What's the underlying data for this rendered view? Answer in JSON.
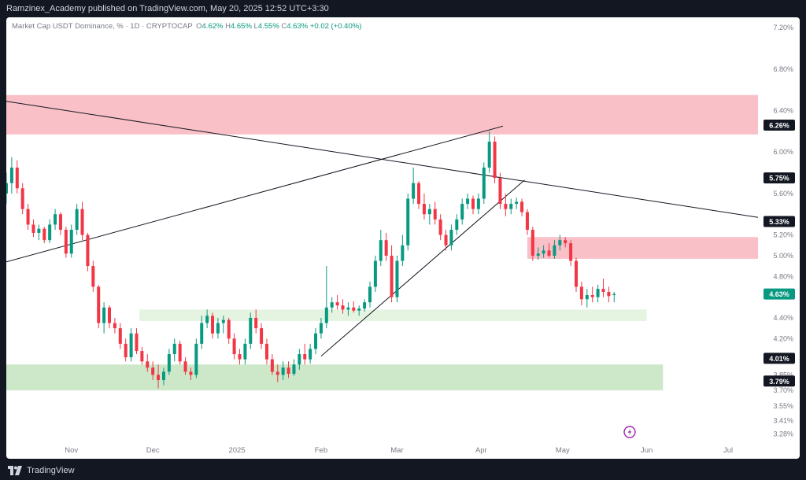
{
  "header": {
    "publisher_line": "Ramzinex_Academy published on TradingView.com, May 20, 2025 12:52 UTC+3:30"
  },
  "legend": {
    "symbol": "Market Cap USDT Dominance, % · 1D · CRYPTOCAP",
    "open_label": "O",
    "open": "4.62%",
    "high_label": "H",
    "high": "4.65%",
    "low_label": "L",
    "low": "4.55%",
    "close_label": "C",
    "close": "4.63%",
    "change": "+0.02 (+0.40%)"
  },
  "footer": {
    "brand": "TradingView"
  },
  "colors": {
    "up": "#089981",
    "down": "#f23645",
    "resistance_zone": "#f9b5bd",
    "support_zone": "#c7e6c3",
    "support_zone_light": "#e2f2de",
    "trendline": "#131722"
  },
  "chart_data": {
    "type": "candlestick",
    "y_scale": "linear",
    "ylim": [
      3.2,
      7.3
    ],
    "y_tick_labels": [
      "7.20%",
      "6.80%",
      "6.40%",
      "6.00%",
      "5.60%",
      "5.20%",
      "5.00%",
      "4.80%",
      "4.40%",
      "4.20%",
      "3.85%",
      "3.70%",
      "3.55%",
      "3.41%",
      "3.28%"
    ],
    "y_tick_values": [
      7.2,
      6.8,
      6.4,
      6.0,
      5.6,
      5.2,
      5.0,
      4.8,
      4.4,
      4.2,
      3.85,
      3.7,
      3.55,
      3.41,
      3.28
    ],
    "x_tick_labels": [
      "Nov",
      "Dec",
      "2025",
      "Feb",
      "Mar",
      "Apr",
      "May",
      "Jun",
      "Jul"
    ],
    "x_tick_dates": [
      "2024-11-01",
      "2024-12-01",
      "2025-01-01",
      "2025-02-01",
      "2025-03-01",
      "2025-04-01",
      "2025-05-01",
      "2025-06-01",
      "2025-07-01"
    ],
    "x_range": [
      "2024-10-08",
      "2025-07-12"
    ],
    "price_tags": [
      {
        "label": "6.26%",
        "value": 6.26,
        "style": "dark"
      },
      {
        "label": "5.75%",
        "value": 5.75,
        "style": "dark"
      },
      {
        "label": "5.33%",
        "value": 5.33,
        "style": "dark"
      },
      {
        "label": "4.63%",
        "value": 4.63,
        "style": "current"
      },
      {
        "label": "4.01%",
        "value": 4.01,
        "style": "dark"
      },
      {
        "label": "3.79%",
        "value": 3.79,
        "style": "dark"
      }
    ],
    "zones": [
      {
        "kind": "resistance",
        "from": "2024-10-08",
        "to": "2025-07-12",
        "low": 6.17,
        "high": 6.55
      },
      {
        "kind": "resistance",
        "from": "2025-04-18",
        "to": "2025-07-12",
        "low": 4.97,
        "high": 5.18
      },
      {
        "kind": "support_light",
        "from": "2024-11-26",
        "to": "2025-06-01",
        "low": 4.37,
        "high": 4.48
      },
      {
        "kind": "support",
        "from": "2024-10-08",
        "to": "2025-06-07",
        "low": 3.7,
        "high": 3.95
      }
    ],
    "trendlines": [
      {
        "from": [
          "2024-10-08",
          6.49
        ],
        "to": [
          "2025-07-12",
          5.37
        ]
      },
      {
        "from": [
          "2024-10-08",
          4.94
        ],
        "to": [
          "2025-04-09",
          6.25
        ]
      },
      {
        "from": [
          "2025-02-01",
          4.03
        ],
        "to": [
          "2025-04-17",
          5.73
        ]
      }
    ],
    "candles": [
      [
        "2024-10-08",
        5.6,
        5.8,
        5.5,
        5.7
      ],
      [
        "2024-10-10",
        5.7,
        5.95,
        5.6,
        5.85
      ],
      [
        "2024-10-12",
        5.85,
        5.92,
        5.6,
        5.65
      ],
      [
        "2024-10-14",
        5.65,
        5.7,
        5.4,
        5.45
      ],
      [
        "2024-10-16",
        5.45,
        5.5,
        5.25,
        5.3
      ],
      [
        "2024-10-18",
        5.3,
        5.35,
        5.18,
        5.22
      ],
      [
        "2024-10-20",
        5.22,
        5.3,
        5.15,
        5.26
      ],
      [
        "2024-10-22",
        5.26,
        5.28,
        5.12,
        5.15
      ],
      [
        "2024-10-24",
        5.15,
        5.35,
        5.12,
        5.3
      ],
      [
        "2024-10-26",
        5.3,
        5.45,
        5.25,
        5.4
      ],
      [
        "2024-10-28",
        5.4,
        5.42,
        5.2,
        5.25
      ],
      [
        "2024-10-30",
        5.25,
        5.28,
        4.98,
        5.02
      ],
      [
        "2024-11-01",
        5.02,
        5.3,
        4.98,
        5.25
      ],
      [
        "2024-11-03",
        5.25,
        5.5,
        5.2,
        5.45
      ],
      [
        "2024-11-05",
        5.45,
        5.52,
        5.15,
        5.2
      ],
      [
        "2024-11-07",
        5.2,
        5.22,
        4.85,
        4.9
      ],
      [
        "2024-11-09",
        4.9,
        4.95,
        4.65,
        4.7
      ],
      [
        "2024-11-11",
        4.7,
        4.72,
        4.3,
        4.35
      ],
      [
        "2024-11-13",
        4.35,
        4.55,
        4.25,
        4.5
      ],
      [
        "2024-11-15",
        4.5,
        4.52,
        4.3,
        4.35
      ],
      [
        "2024-11-17",
        4.35,
        4.4,
        4.25,
        4.3
      ],
      [
        "2024-11-19",
        4.3,
        4.35,
        4.1,
        4.15
      ],
      [
        "2024-11-21",
        4.15,
        4.2,
        3.98,
        4.02
      ],
      [
        "2024-11-23",
        4.02,
        4.3,
        3.98,
        4.25
      ],
      [
        "2024-11-25",
        4.25,
        4.3,
        4.05,
        4.08
      ],
      [
        "2024-11-27",
        4.08,
        4.12,
        3.95,
        3.98
      ],
      [
        "2024-11-29",
        3.98,
        4.05,
        3.88,
        3.92
      ],
      [
        "2024-12-01",
        3.92,
        3.98,
        3.8,
        3.85
      ],
      [
        "2024-12-03",
        3.85,
        3.95,
        3.72,
        3.8
      ],
      [
        "2024-12-05",
        3.8,
        3.92,
        3.75,
        3.88
      ],
      [
        "2024-12-07",
        3.88,
        4.1,
        3.85,
        4.05
      ],
      [
        "2024-12-09",
        4.05,
        4.2,
        3.98,
        4.15
      ],
      [
        "2024-12-11",
        4.15,
        4.18,
        3.95,
        3.98
      ],
      [
        "2024-12-13",
        3.98,
        4.02,
        3.85,
        3.88
      ],
      [
        "2024-12-15",
        3.88,
        3.92,
        3.8,
        3.85
      ],
      [
        "2024-12-17",
        3.85,
        4.2,
        3.82,
        4.15
      ],
      [
        "2024-12-19",
        4.15,
        4.42,
        4.1,
        4.35
      ],
      [
        "2024-12-21",
        4.35,
        4.48,
        4.3,
        4.42
      ],
      [
        "2024-12-23",
        4.42,
        4.45,
        4.2,
        4.25
      ],
      [
        "2024-12-25",
        4.25,
        4.4,
        4.2,
        4.35
      ],
      [
        "2024-12-27",
        4.35,
        4.42,
        4.25,
        4.38
      ],
      [
        "2024-12-29",
        4.38,
        4.4,
        4.15,
        4.2
      ],
      [
        "2024-12-31",
        4.2,
        4.25,
        4.0,
        4.05
      ],
      [
        "2025-01-02",
        4.05,
        4.1,
        3.95,
        4.0
      ],
      [
        "2025-01-04",
        4.0,
        4.2,
        3.95,
        4.15
      ],
      [
        "2025-01-06",
        4.15,
        4.45,
        4.1,
        4.4
      ],
      [
        "2025-01-08",
        4.4,
        4.48,
        4.25,
        4.3
      ],
      [
        "2025-01-10",
        4.3,
        4.35,
        4.1,
        4.15
      ],
      [
        "2025-01-12",
        4.15,
        4.2,
        3.95,
        4.0
      ],
      [
        "2025-01-14",
        4.0,
        4.05,
        3.85,
        3.88
      ],
      [
        "2025-01-16",
        3.88,
        3.95,
        3.78,
        3.85
      ],
      [
        "2025-01-18",
        3.85,
        3.98,
        3.8,
        3.92
      ],
      [
        "2025-01-20",
        3.92,
        3.98,
        3.82,
        3.86
      ],
      [
        "2025-01-22",
        3.86,
        4.0,
        3.84,
        3.95
      ],
      [
        "2025-01-24",
        3.95,
        4.1,
        3.9,
        4.05
      ],
      [
        "2025-01-26",
        4.05,
        4.15,
        3.95,
        4.0
      ],
      [
        "2025-01-28",
        4.0,
        4.15,
        3.96,
        4.1
      ],
      [
        "2025-01-30",
        4.1,
        4.3,
        4.05,
        4.25
      ],
      [
        "2025-02-01",
        4.25,
        4.4,
        4.2,
        4.35
      ],
      [
        "2025-02-03",
        4.35,
        4.9,
        4.3,
        4.5
      ],
      [
        "2025-02-05",
        4.5,
        4.6,
        4.45,
        4.55
      ],
      [
        "2025-02-07",
        4.55,
        4.62,
        4.48,
        4.52
      ],
      [
        "2025-02-09",
        4.52,
        4.58,
        4.44,
        4.48
      ],
      [
        "2025-02-11",
        4.48,
        4.55,
        4.42,
        4.5
      ],
      [
        "2025-02-13",
        4.5,
        4.56,
        4.45,
        4.47
      ],
      [
        "2025-02-15",
        4.47,
        4.52,
        4.42,
        4.49
      ],
      [
        "2025-02-17",
        4.49,
        4.58,
        4.46,
        4.55
      ],
      [
        "2025-02-19",
        4.55,
        4.75,
        4.5,
        4.7
      ],
      [
        "2025-02-21",
        4.7,
        5.0,
        4.65,
        4.95
      ],
      [
        "2025-02-23",
        4.95,
        5.25,
        4.9,
        5.15
      ],
      [
        "2025-02-25",
        5.15,
        5.22,
        4.95,
        5.0
      ],
      [
        "2025-02-27",
        5.0,
        5.1,
        4.55,
        4.6
      ],
      [
        "2025-03-01",
        4.6,
        5.0,
        4.55,
        4.95
      ],
      [
        "2025-03-03",
        4.95,
        5.2,
        4.9,
        5.1
      ],
      [
        "2025-03-05",
        5.1,
        5.6,
        5.05,
        5.55
      ],
      [
        "2025-03-07",
        5.55,
        5.85,
        5.5,
        5.7
      ],
      [
        "2025-03-09",
        5.7,
        5.72,
        5.45,
        5.5
      ],
      [
        "2025-03-11",
        5.5,
        5.6,
        5.35,
        5.4
      ],
      [
        "2025-03-13",
        5.4,
        5.5,
        5.3,
        5.45
      ],
      [
        "2025-03-15",
        5.45,
        5.52,
        5.3,
        5.35
      ],
      [
        "2025-03-17",
        5.35,
        5.4,
        5.15,
        5.2
      ],
      [
        "2025-03-19",
        5.2,
        5.25,
        5.05,
        5.1
      ],
      [
        "2025-03-21",
        5.1,
        5.3,
        5.05,
        5.25
      ],
      [
        "2025-03-23",
        5.25,
        5.4,
        5.2,
        5.35
      ],
      [
        "2025-03-25",
        5.35,
        5.55,
        5.3,
        5.5
      ],
      [
        "2025-03-27",
        5.5,
        5.6,
        5.45,
        5.55
      ],
      [
        "2025-03-29",
        5.55,
        5.58,
        5.4,
        5.45
      ],
      [
        "2025-03-31",
        5.45,
        5.6,
        5.4,
        5.55
      ],
      [
        "2025-04-02",
        5.55,
        5.9,
        5.5,
        5.85
      ],
      [
        "2025-04-04",
        5.85,
        6.2,
        5.8,
        6.1
      ],
      [
        "2025-04-06",
        6.1,
        6.15,
        5.7,
        5.75
      ],
      [
        "2025-04-08",
        5.75,
        5.8,
        5.45,
        5.5
      ],
      [
        "2025-04-10",
        5.5,
        5.6,
        5.38,
        5.45
      ],
      [
        "2025-04-12",
        5.45,
        5.55,
        5.4,
        5.5
      ],
      [
        "2025-04-14",
        5.5,
        5.56,
        5.45,
        5.52
      ],
      [
        "2025-04-16",
        5.52,
        5.55,
        5.38,
        5.42
      ],
      [
        "2025-04-18",
        5.42,
        5.45,
        5.2,
        5.25
      ],
      [
        "2025-04-20",
        5.25,
        5.28,
        4.95,
        5.0
      ],
      [
        "2025-04-22",
        5.0,
        5.08,
        4.96,
        5.02
      ],
      [
        "2025-04-24",
        5.02,
        5.1,
        4.98,
        5.05
      ],
      [
        "2025-04-26",
        5.05,
        5.12,
        4.98,
        5.0
      ],
      [
        "2025-04-28",
        5.0,
        5.15,
        4.97,
        5.1
      ],
      [
        "2025-04-30",
        5.1,
        5.2,
        5.05,
        5.15
      ],
      [
        "2025-05-02",
        5.15,
        5.18,
        5.08,
        5.12
      ],
      [
        "2025-05-04",
        5.12,
        5.15,
        4.9,
        4.95
      ],
      [
        "2025-05-06",
        4.95,
        4.98,
        4.65,
        4.7
      ],
      [
        "2025-05-08",
        4.7,
        4.75,
        4.52,
        4.58
      ],
      [
        "2025-05-10",
        4.58,
        4.68,
        4.5,
        4.62
      ],
      [
        "2025-05-12",
        4.62,
        4.7,
        4.55,
        4.6
      ],
      [
        "2025-05-14",
        4.6,
        4.72,
        4.55,
        4.68
      ],
      [
        "2025-05-16",
        4.68,
        4.78,
        4.6,
        4.65
      ],
      [
        "2025-05-18",
        4.65,
        4.7,
        4.55,
        4.61
      ],
      [
        "2025-05-20",
        4.62,
        4.65,
        4.55,
        4.63
      ]
    ]
  }
}
